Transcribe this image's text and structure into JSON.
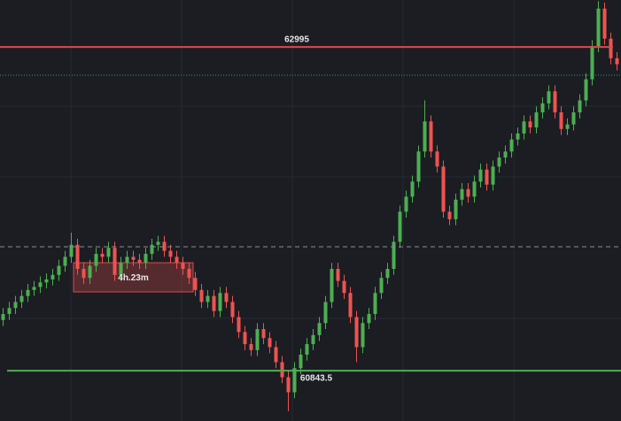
{
  "chart_data": {
    "type": "candlestick",
    "ylim": [
      60509,
      63307
    ],
    "up_color": "#4caf50",
    "down_color": "#ef5350",
    "candles": [
      [
        61180,
        61260,
        61140,
        61220
      ],
      [
        61220,
        61300,
        61180,
        61260
      ],
      [
        61260,
        61340,
        61220,
        61300
      ],
      [
        61300,
        61380,
        61260,
        61340
      ],
      [
        61340,
        61420,
        61300,
        61380
      ],
      [
        61380,
        61440,
        61340,
        61400
      ],
      [
        61400,
        61470,
        61360,
        61430
      ],
      [
        61430,
        61490,
        61390,
        61450
      ],
      [
        61450,
        61520,
        61410,
        61480
      ],
      [
        61480,
        61580,
        61440,
        61540
      ],
      [
        61540,
        61640,
        61500,
        61600
      ],
      [
        61600,
        61760,
        61560,
        61680
      ],
      [
        61680,
        61720,
        61480,
        61520
      ],
      [
        61520,
        61560,
        61420,
        61460
      ],
      [
        61460,
        61580,
        61420,
        61540
      ],
      [
        61540,
        61660,
        61500,
        61620
      ],
      [
        61620,
        61660,
        61560,
        61600
      ],
      [
        61600,
        61700,
        61560,
        61660
      ],
      [
        61660,
        61700,
        61440,
        61480
      ],
      [
        61480,
        61600,
        61440,
        61560
      ],
      [
        61560,
        61640,
        61520,
        61600
      ],
      [
        61600,
        61640,
        61540,
        61580
      ],
      [
        61580,
        61620,
        61520,
        61560
      ],
      [
        61560,
        61660,
        61520,
        61620
      ],
      [
        61620,
        61720,
        61580,
        61680
      ],
      [
        61680,
        61740,
        61640,
        61700
      ],
      [
        61700,
        61740,
        61600,
        61640
      ],
      [
        61640,
        61680,
        61560,
        61600
      ],
      [
        61600,
        61640,
        61520,
        61560
      ],
      [
        61560,
        61600,
        61480,
        61520
      ],
      [
        61520,
        61560,
        61420,
        61460
      ],
      [
        61460,
        61500,
        61340,
        61380
      ],
      [
        61380,
        61420,
        61260,
        61300
      ],
      [
        61300,
        61380,
        61260,
        61340
      ],
      [
        61340,
        61380,
        61200,
        61240
      ],
      [
        61240,
        61400,
        61200,
        61360
      ],
      [
        61360,
        61400,
        61260,
        61300
      ],
      [
        61300,
        61340,
        61160,
        61200
      ],
      [
        61200,
        61240,
        61060,
        61100
      ],
      [
        61100,
        61140,
        60980,
        61020
      ],
      [
        61020,
        61060,
        60940,
        60980
      ],
      [
        60980,
        61160,
        60940,
        61120
      ],
      [
        61120,
        61160,
        61020,
        61060
      ],
      [
        61060,
        61100,
        60960,
        61000
      ],
      [
        61000,
        61040,
        60860,
        60900
      ],
      [
        60900,
        60940,
        60760,
        60800
      ],
      [
        60800,
        60840,
        60574,
        60700
      ],
      [
        60700,
        60900,
        60660,
        60860
      ],
      [
        60860,
        60990,
        60820,
        60950
      ],
      [
        60950,
        61060,
        60910,
        61020
      ],
      [
        61020,
        61120,
        60980,
        61080
      ],
      [
        61080,
        61200,
        61040,
        61160
      ],
      [
        61160,
        61340,
        61120,
        61300
      ],
      [
        61300,
        61560,
        61260,
        61520
      ],
      [
        61520,
        61560,
        61400,
        61440
      ],
      [
        61440,
        61480,
        61320,
        61360
      ],
      [
        61360,
        61400,
        61160,
        61200
      ],
      [
        61200,
        61240,
        60900,
        61000
      ],
      [
        61000,
        61200,
        60960,
        61160
      ],
      [
        61160,
        61260,
        61120,
        61220
      ],
      [
        61220,
        61400,
        61180,
        61360
      ],
      [
        61360,
        61500,
        61320,
        61460
      ],
      [
        61460,
        61560,
        61420,
        61520
      ],
      [
        61520,
        61740,
        61480,
        61700
      ],
      [
        61700,
        61940,
        61660,
        61900
      ],
      [
        61900,
        62040,
        61860,
        62000
      ],
      [
        62000,
        62140,
        61960,
        62100
      ],
      [
        62100,
        62340,
        62060,
        62300
      ],
      [
        62300,
        62640,
        62260,
        62500
      ],
      [
        62500,
        62540,
        62260,
        62300
      ],
      [
        62300,
        62340,
        62160,
        62200
      ],
      [
        62200,
        62240,
        61860,
        61900
      ],
      [
        61900,
        61940,
        61810,
        61850
      ],
      [
        61850,
        62020,
        61810,
        61980
      ],
      [
        61980,
        62090,
        61940,
        62050
      ],
      [
        62050,
        62090,
        61960,
        62000
      ],
      [
        62000,
        62140,
        61960,
        62100
      ],
      [
        62100,
        62220,
        62060,
        62180
      ],
      [
        62180,
        62220,
        62040,
        62080
      ],
      [
        62080,
        62240,
        62040,
        62200
      ],
      [
        62200,
        62300,
        62160,
        62260
      ],
      [
        62260,
        62340,
        62220,
        62300
      ],
      [
        62300,
        62420,
        62260,
        62380
      ],
      [
        62380,
        62460,
        62340,
        62420
      ],
      [
        62420,
        62540,
        62380,
        62500
      ],
      [
        62500,
        62540,
        62420,
        62460
      ],
      [
        62460,
        62600,
        62420,
        62560
      ],
      [
        62560,
        62660,
        62520,
        62620
      ],
      [
        62620,
        62740,
        62580,
        62700
      ],
      [
        62700,
        62740,
        62520,
        62560
      ],
      [
        62560,
        62600,
        62410,
        62450
      ],
      [
        62450,
        62520,
        62410,
        62480
      ],
      [
        62480,
        62600,
        62440,
        62560
      ],
      [
        62560,
        62680,
        62520,
        62640
      ],
      [
        62640,
        62820,
        62600,
        62780
      ],
      [
        62780,
        63040,
        62740,
        63000
      ],
      [
        63000,
        63300,
        62960,
        63250
      ],
      [
        63250,
        63290,
        63010,
        63050
      ],
      [
        63050,
        63090,
        62880,
        62920
      ],
      [
        62920,
        62960,
        62840,
        62880
      ]
    ],
    "levels": [
      {
        "value": 62995,
        "label": "62995",
        "color": "#e0474c",
        "style": "solid"
      },
      {
        "value": 62807,
        "color": "#2e9e6a",
        "style": "dotted"
      },
      {
        "value": 61667,
        "color": "#8a8d94",
        "style": "dashed"
      },
      {
        "value": 60843.5,
        "label": "60843.5",
        "color": "#4caf50",
        "style": "solid"
      }
    ],
    "annotation": {
      "text": "4h.23m",
      "start": 12,
      "end": 30,
      "range": [
        61367,
        61561
      ]
    }
  }
}
